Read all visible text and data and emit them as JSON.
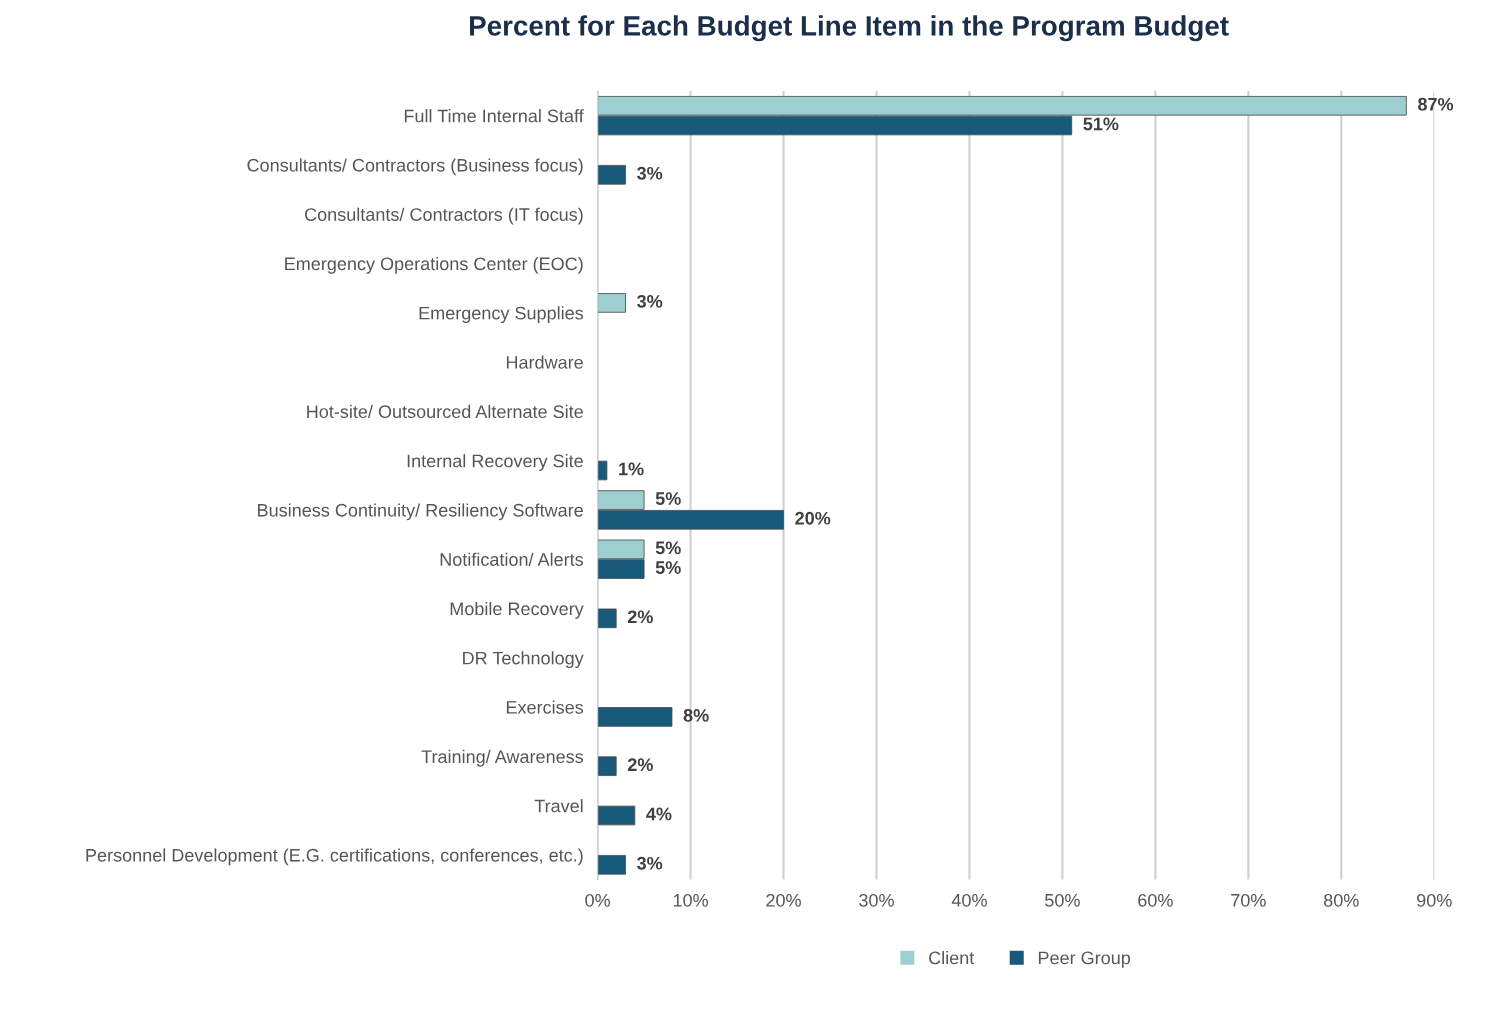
{
  "chart_data": {
    "type": "bar",
    "orientation": "horizontal",
    "title": "Percent for Each Budget Line Item in the Program Budget",
    "categories": [
      "Full Time Internal Staff",
      "Consultants/ Contractors (Business focus)",
      "Consultants/ Contractors (IT focus)",
      "Emergency Operations Center (EOC)",
      "Emergency Supplies",
      "Hardware",
      "Hot-site/ Outsourced Alternate Site",
      "Internal Recovery Site",
      "Business Continuity/ Resiliency Software",
      "Notification/ Alerts",
      "Mobile Recovery",
      "DR Technology",
      "Exercises",
      "Training/ Awareness",
      "Travel",
      "Personnel Development (E.G. certifications, conferences, etc.)"
    ],
    "series": [
      {
        "name": "Client",
        "color": "#9dcfd0",
        "values": [
          87,
          null,
          null,
          null,
          3,
          null,
          null,
          null,
          5,
          5,
          null,
          null,
          null,
          null,
          null,
          null
        ],
        "value_labels": [
          "87%",
          null,
          null,
          null,
          "3%",
          null,
          null,
          null,
          "5%",
          "5%",
          null,
          null,
          null,
          null,
          null,
          null
        ]
      },
      {
        "name": "Peer Group",
        "color": "#175a7a",
        "values": [
          51,
          3,
          null,
          null,
          null,
          null,
          null,
          1,
          20,
          5,
          2,
          null,
          8,
          2,
          4,
          3
        ],
        "value_labels": [
          "51%",
          "3%",
          null,
          null,
          null,
          null,
          null,
          "1%",
          "20%",
          "5%",
          "2%",
          null,
          "8%",
          "2%",
          "4%",
          "3%"
        ]
      }
    ],
    "xlim": [
      0,
      90
    ],
    "xticks": [
      {
        "value": 0,
        "label": "0%"
      },
      {
        "value": 10,
        "label": "10%"
      },
      {
        "value": 20,
        "label": "20%"
      },
      {
        "value": 30,
        "label": "30%"
      },
      {
        "value": 40,
        "label": "40%"
      },
      {
        "value": 50,
        "label": "50%"
      },
      {
        "value": 60,
        "label": "60%"
      },
      {
        "value": 70,
        "label": "70%"
      },
      {
        "value": 80,
        "label": "80%"
      },
      {
        "value": 90,
        "label": "90%"
      }
    ],
    "grid": "x",
    "legend": "bottom"
  }
}
